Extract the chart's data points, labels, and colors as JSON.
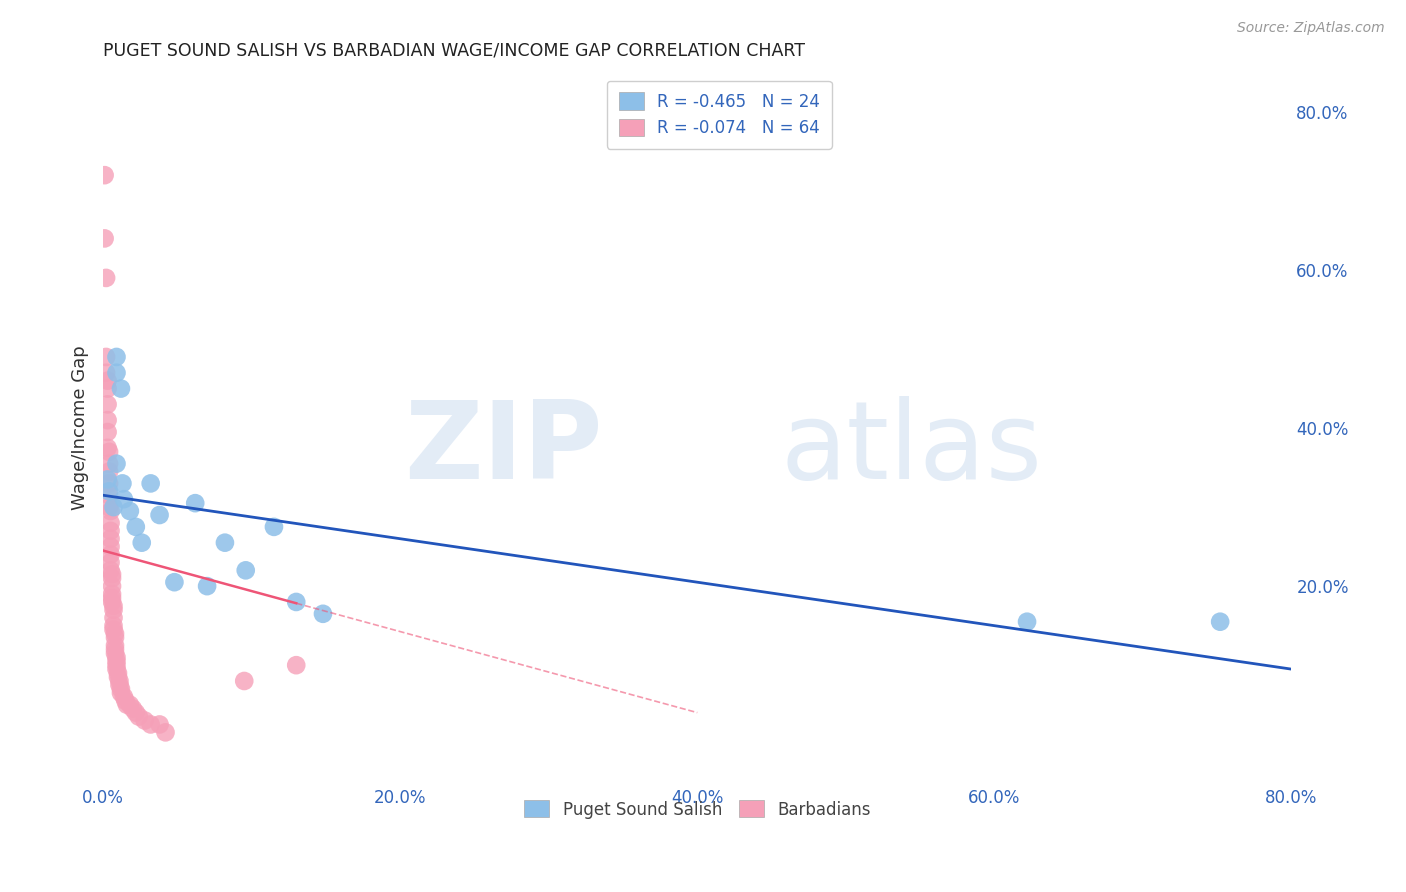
{
  "title": "PUGET SOUND SALISH VS BARBADIAN WAGE/INCOME GAP CORRELATION CHART",
  "source": "Source: ZipAtlas.com",
  "ylabel": "Wage/Income Gap",
  "xlim": [
    0.0,
    0.8
  ],
  "ylim": [
    -0.05,
    0.85
  ],
  "xtick_vals": [
    0.0,
    0.2,
    0.4,
    0.6,
    0.8
  ],
  "xtick_labels": [
    "0.0%",
    "20.0%",
    "40.0%",
    "60.0%",
    "80.0%"
  ],
  "ytick_vals": [
    0.2,
    0.4,
    0.6,
    0.8
  ],
  "ytick_labels": [
    "20.0%",
    "40.0%",
    "60.0%",
    "80.0%"
  ],
  "legend_line1": "R = -0.465   N = 24",
  "legend_line2": "R = -0.074   N = 64",
  "series1_label": "Puget Sound Salish",
  "series2_label": "Barbadians",
  "color_blue": "#8DBFE8",
  "color_pink": "#F5A0B8",
  "color_blue_line": "#2255BB",
  "color_pink_line": "#EE5577",
  "color_text_blue": "#3366BB",
  "background_color": "#ffffff",
  "grid_color": "#cccccc",
  "blue_line_x0": 0.0,
  "blue_line_y0": 0.315,
  "blue_line_x1": 0.8,
  "blue_line_y1": 0.095,
  "pink_line_x0": 0.0,
  "pink_line_y0": 0.245,
  "pink_line_x1": 0.4,
  "pink_line_y1": 0.04,
  "blue_dots_x": [
    0.003,
    0.004,
    0.007,
    0.009,
    0.009,
    0.009,
    0.012,
    0.013,
    0.014,
    0.018,
    0.022,
    0.026,
    0.032,
    0.038,
    0.048,
    0.062,
    0.07,
    0.082,
    0.096,
    0.115,
    0.13,
    0.148,
    0.622,
    0.752
  ],
  "blue_dots_y": [
    0.335,
    0.32,
    0.3,
    0.49,
    0.47,
    0.355,
    0.45,
    0.33,
    0.31,
    0.295,
    0.275,
    0.255,
    0.33,
    0.29,
    0.205,
    0.305,
    0.2,
    0.255,
    0.22,
    0.275,
    0.18,
    0.165,
    0.155,
    0.155
  ],
  "pink_dots_x": [
    0.001,
    0.001,
    0.002,
    0.002,
    0.002,
    0.003,
    0.003,
    0.003,
    0.003,
    0.003,
    0.003,
    0.004,
    0.004,
    0.004,
    0.004,
    0.004,
    0.004,
    0.005,
    0.005,
    0.005,
    0.005,
    0.005,
    0.005,
    0.005,
    0.005,
    0.006,
    0.006,
    0.006,
    0.006,
    0.006,
    0.006,
    0.007,
    0.007,
    0.007,
    0.007,
    0.007,
    0.008,
    0.008,
    0.008,
    0.008,
    0.008,
    0.009,
    0.009,
    0.009,
    0.009,
    0.01,
    0.01,
    0.011,
    0.011,
    0.012,
    0.012,
    0.014,
    0.015,
    0.016,
    0.018,
    0.02,
    0.022,
    0.024,
    0.028,
    0.032,
    0.038,
    0.042,
    0.095,
    0.13
  ],
  "pink_dots_y": [
    0.72,
    0.64,
    0.59,
    0.49,
    0.47,
    0.46,
    0.45,
    0.43,
    0.41,
    0.395,
    0.375,
    0.37,
    0.355,
    0.345,
    0.33,
    0.315,
    0.3,
    0.295,
    0.28,
    0.27,
    0.26,
    0.25,
    0.24,
    0.23,
    0.22,
    0.215,
    0.21,
    0.2,
    0.19,
    0.185,
    0.18,
    0.175,
    0.17,
    0.16,
    0.15,
    0.145,
    0.14,
    0.135,
    0.125,
    0.12,
    0.115,
    0.11,
    0.105,
    0.1,
    0.095,
    0.09,
    0.085,
    0.08,
    0.075,
    0.07,
    0.065,
    0.06,
    0.055,
    0.05,
    0.05,
    0.045,
    0.04,
    0.035,
    0.03,
    0.025,
    0.025,
    0.015,
    0.08,
    0.1
  ]
}
